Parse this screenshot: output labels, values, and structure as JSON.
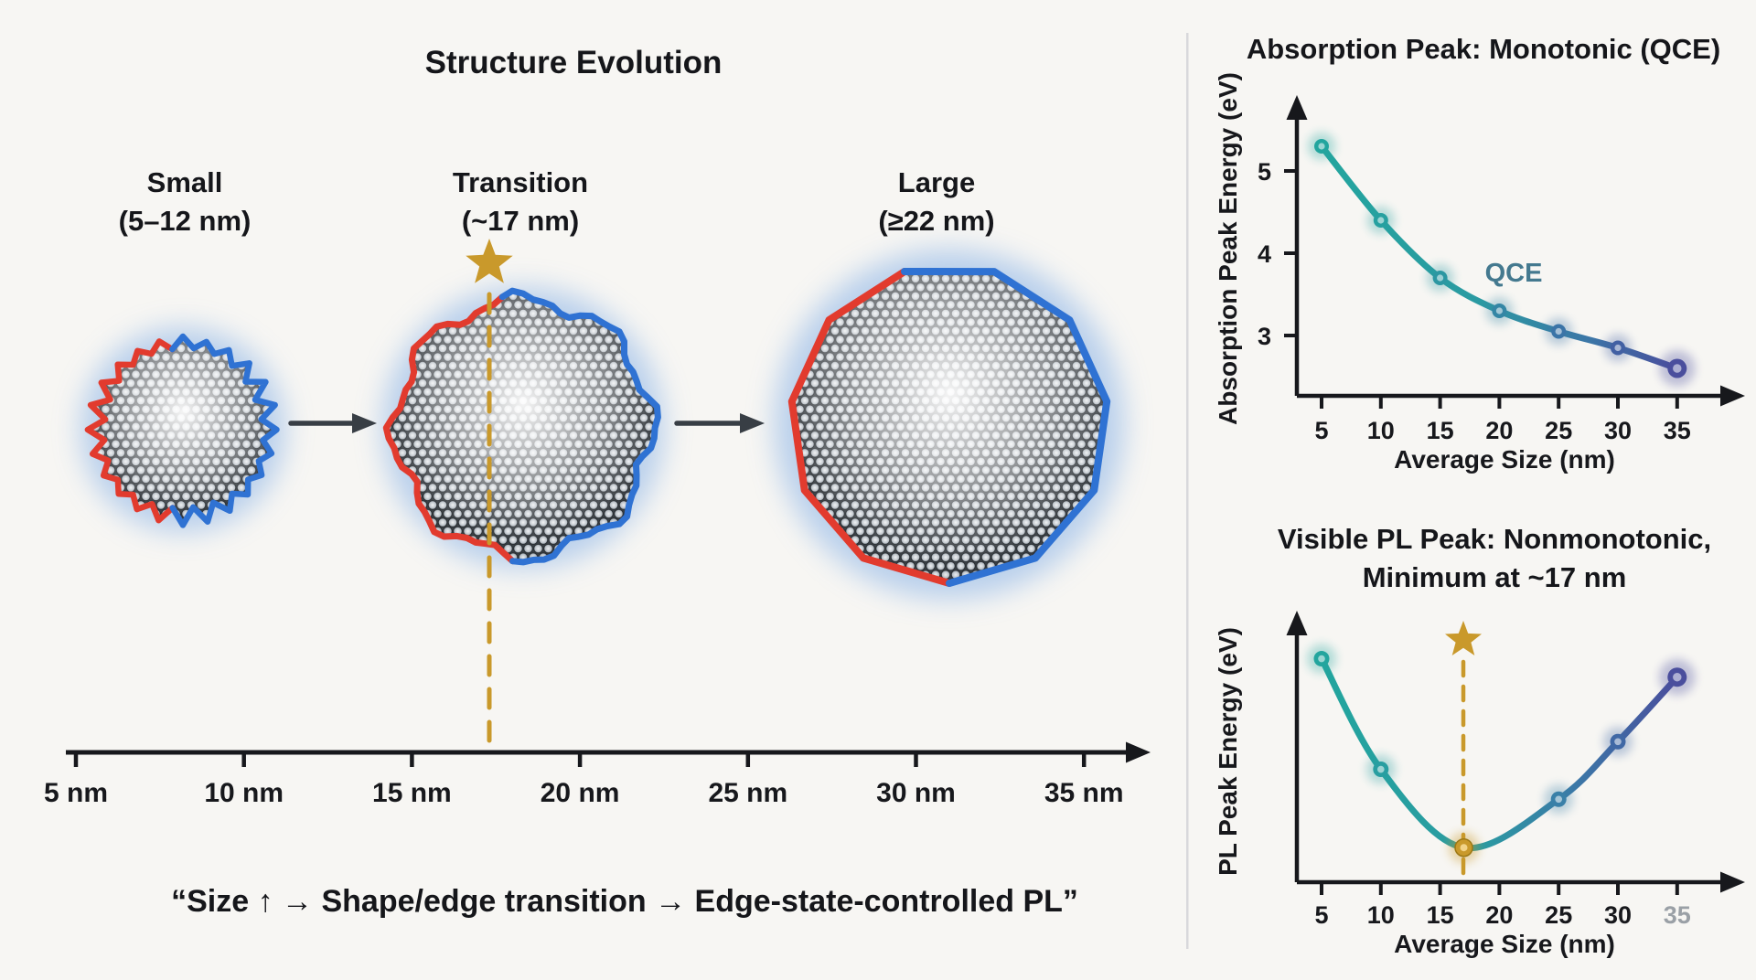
{
  "background_color": "#f7f6f3",
  "accent_colors": {
    "edge_red": "#E23B2E",
    "edge_blue": "#2F72D3",
    "gold": "#C9992B",
    "teal": "#23A59E",
    "indigo": "#4A4E9D",
    "qce_label_color": "#44798F",
    "glow_blue": "#A9C6EA"
  },
  "structure_panel": {
    "title": "Structure Evolution",
    "stages": [
      {
        "name": "Small",
        "size_range": "(5–12 nm)"
      },
      {
        "name": "Transition",
        "size_range": "(~17 nm)"
      },
      {
        "name": "Large",
        "size_range": "(≥22 nm)"
      }
    ],
    "size_axis_labels": [
      "5 nm",
      "10 nm",
      "15 nm",
      "20 nm",
      "25 nm",
      "30 nm",
      "35 nm"
    ],
    "transition_marker": "gold star with dashed line at ~17 nm",
    "quote": "“Size ↑ → Shape/edge transition → Edge-state-controlled PL”"
  },
  "chart_data": [
    {
      "type": "line",
      "title": "Absorption Peak: Monotonic (QCE)",
      "xlabel": "Average Size (nm)",
      "ylabel": "Absorption Peak Energy (eV)",
      "x": [
        5,
        10,
        15,
        20,
        25,
        30,
        35
      ],
      "y_eV": [
        5.3,
        4.4,
        3.7,
        3.3,
        3.05,
        2.85,
        2.6
      ],
      "xticks": [
        5,
        10,
        15,
        20,
        25,
        30,
        35
      ],
      "yticks": [
        5,
        4,
        3
      ],
      "annotation": "QCE",
      "trend": "monotonic decrease",
      "line_gradient": [
        "#23A59E",
        "#4A4E9D"
      ],
      "grid": false,
      "legend": "none"
    },
    {
      "type": "line",
      "title_lines": [
        "Visible PL Peak: Nonmonotonic,",
        "Minimum at ~17 nm"
      ],
      "xlabel": "Average Size (nm)",
      "ylabel": "PL Peak Energy (eV)",
      "x": [
        5,
        10,
        17,
        25,
        30,
        35
      ],
      "y_relative": [
        0.97,
        0.49,
        0.15,
        0.36,
        0.61,
        0.89
      ],
      "xticks": [
        5,
        10,
        15,
        20,
        25,
        30,
        35
      ],
      "minimum": {
        "x_nm": 17,
        "marker": "gold point, gold star and dashed vertical line"
      },
      "trend": "nonmonotonic, U-shaped",
      "line_gradient": [
        "#23A59E",
        "#4A4E9D"
      ],
      "grid": false,
      "legend": "none"
    }
  ]
}
